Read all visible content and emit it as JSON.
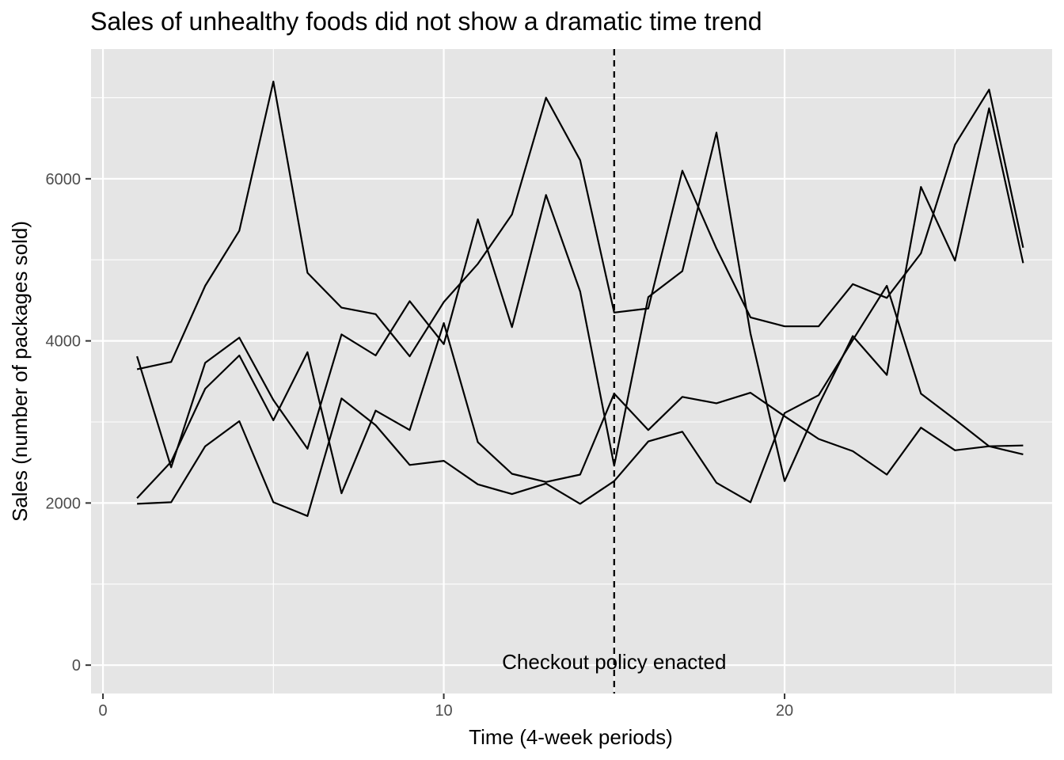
{
  "chart_data": {
    "type": "line",
    "title": "Sales of unhealthy foods did not show a dramatic time trend",
    "xlabel": "Time (4-week periods)",
    "ylabel": "Sales (number of packages sold)",
    "xlim": [
      -0.35,
      27.85
    ],
    "ylim": [
      -350,
      7600
    ],
    "x_ticks": [
      0,
      10,
      20
    ],
    "x_tick_labels": [
      "0",
      "10",
      "20"
    ],
    "y_ticks": [
      0,
      2000,
      4000,
      6000
    ],
    "y_tick_labels": [
      "0",
      "2000",
      "4000",
      "6000"
    ],
    "x_minor_ticks": [
      5,
      15,
      25
    ],
    "y_minor_ticks": [
      1000,
      3000,
      5000,
      7000
    ],
    "grid": true,
    "legend": "none",
    "background": "#e5e5e5",
    "gridline_color": "#ffffff",
    "line_color": "#000000",
    "x": [
      1,
      2,
      3,
      4,
      5,
      6,
      7,
      8,
      9,
      10,
      11,
      12,
      13,
      14,
      15,
      16,
      17,
      18,
      19,
      20,
      21,
      22,
      23,
      24,
      25,
      26,
      27
    ],
    "series": [
      {
        "values": [
          3650,
          3740,
          4680,
          5360,
          7200,
          4840,
          4410,
          4330,
          3810,
          4480,
          4950,
          5560,
          7000,
          6230,
          4350,
          4400,
          6100,
          5140,
          4290,
          4180,
          4180,
          4700,
          4530,
          5080,
          6420,
          7100,
          5150
        ]
      },
      {
        "values": [
          3810,
          2440,
          3730,
          4040,
          3270,
          2670,
          4080,
          3820,
          4490,
          3960,
          5500,
          4170,
          5800,
          4610,
          2460,
          4540,
          4860,
          6570,
          4090,
          2270,
          3210,
          4060,
          3580,
          5900,
          4990,
          6870,
          4960
        ]
      },
      {
        "values": [
          2060,
          2510,
          3410,
          3820,
          3020,
          3860,
          2120,
          3140,
          2900,
          4220,
          2750,
          2360,
          2260,
          2350,
          3350,
          2900,
          3310,
          3230,
          3360,
          3070,
          2790,
          2640,
          2350,
          2930,
          2650,
          2700,
          2710
        ]
      },
      {
        "values": [
          1990,
          2010,
          2700,
          3010,
          2010,
          1840,
          3290,
          2960,
          2470,
          2520,
          2230,
          2110,
          2240,
          1990,
          2270,
          2760,
          2880,
          2250,
          2010,
          3110,
          3330,
          4010,
          4680,
          3350,
          3030,
          2700,
          2600
        ]
      }
    ],
    "vline": {
      "x": 15,
      "style": "dashed"
    },
    "annotation": {
      "text": "Checkout policy enacted",
      "x": 15,
      "y": 0
    }
  }
}
